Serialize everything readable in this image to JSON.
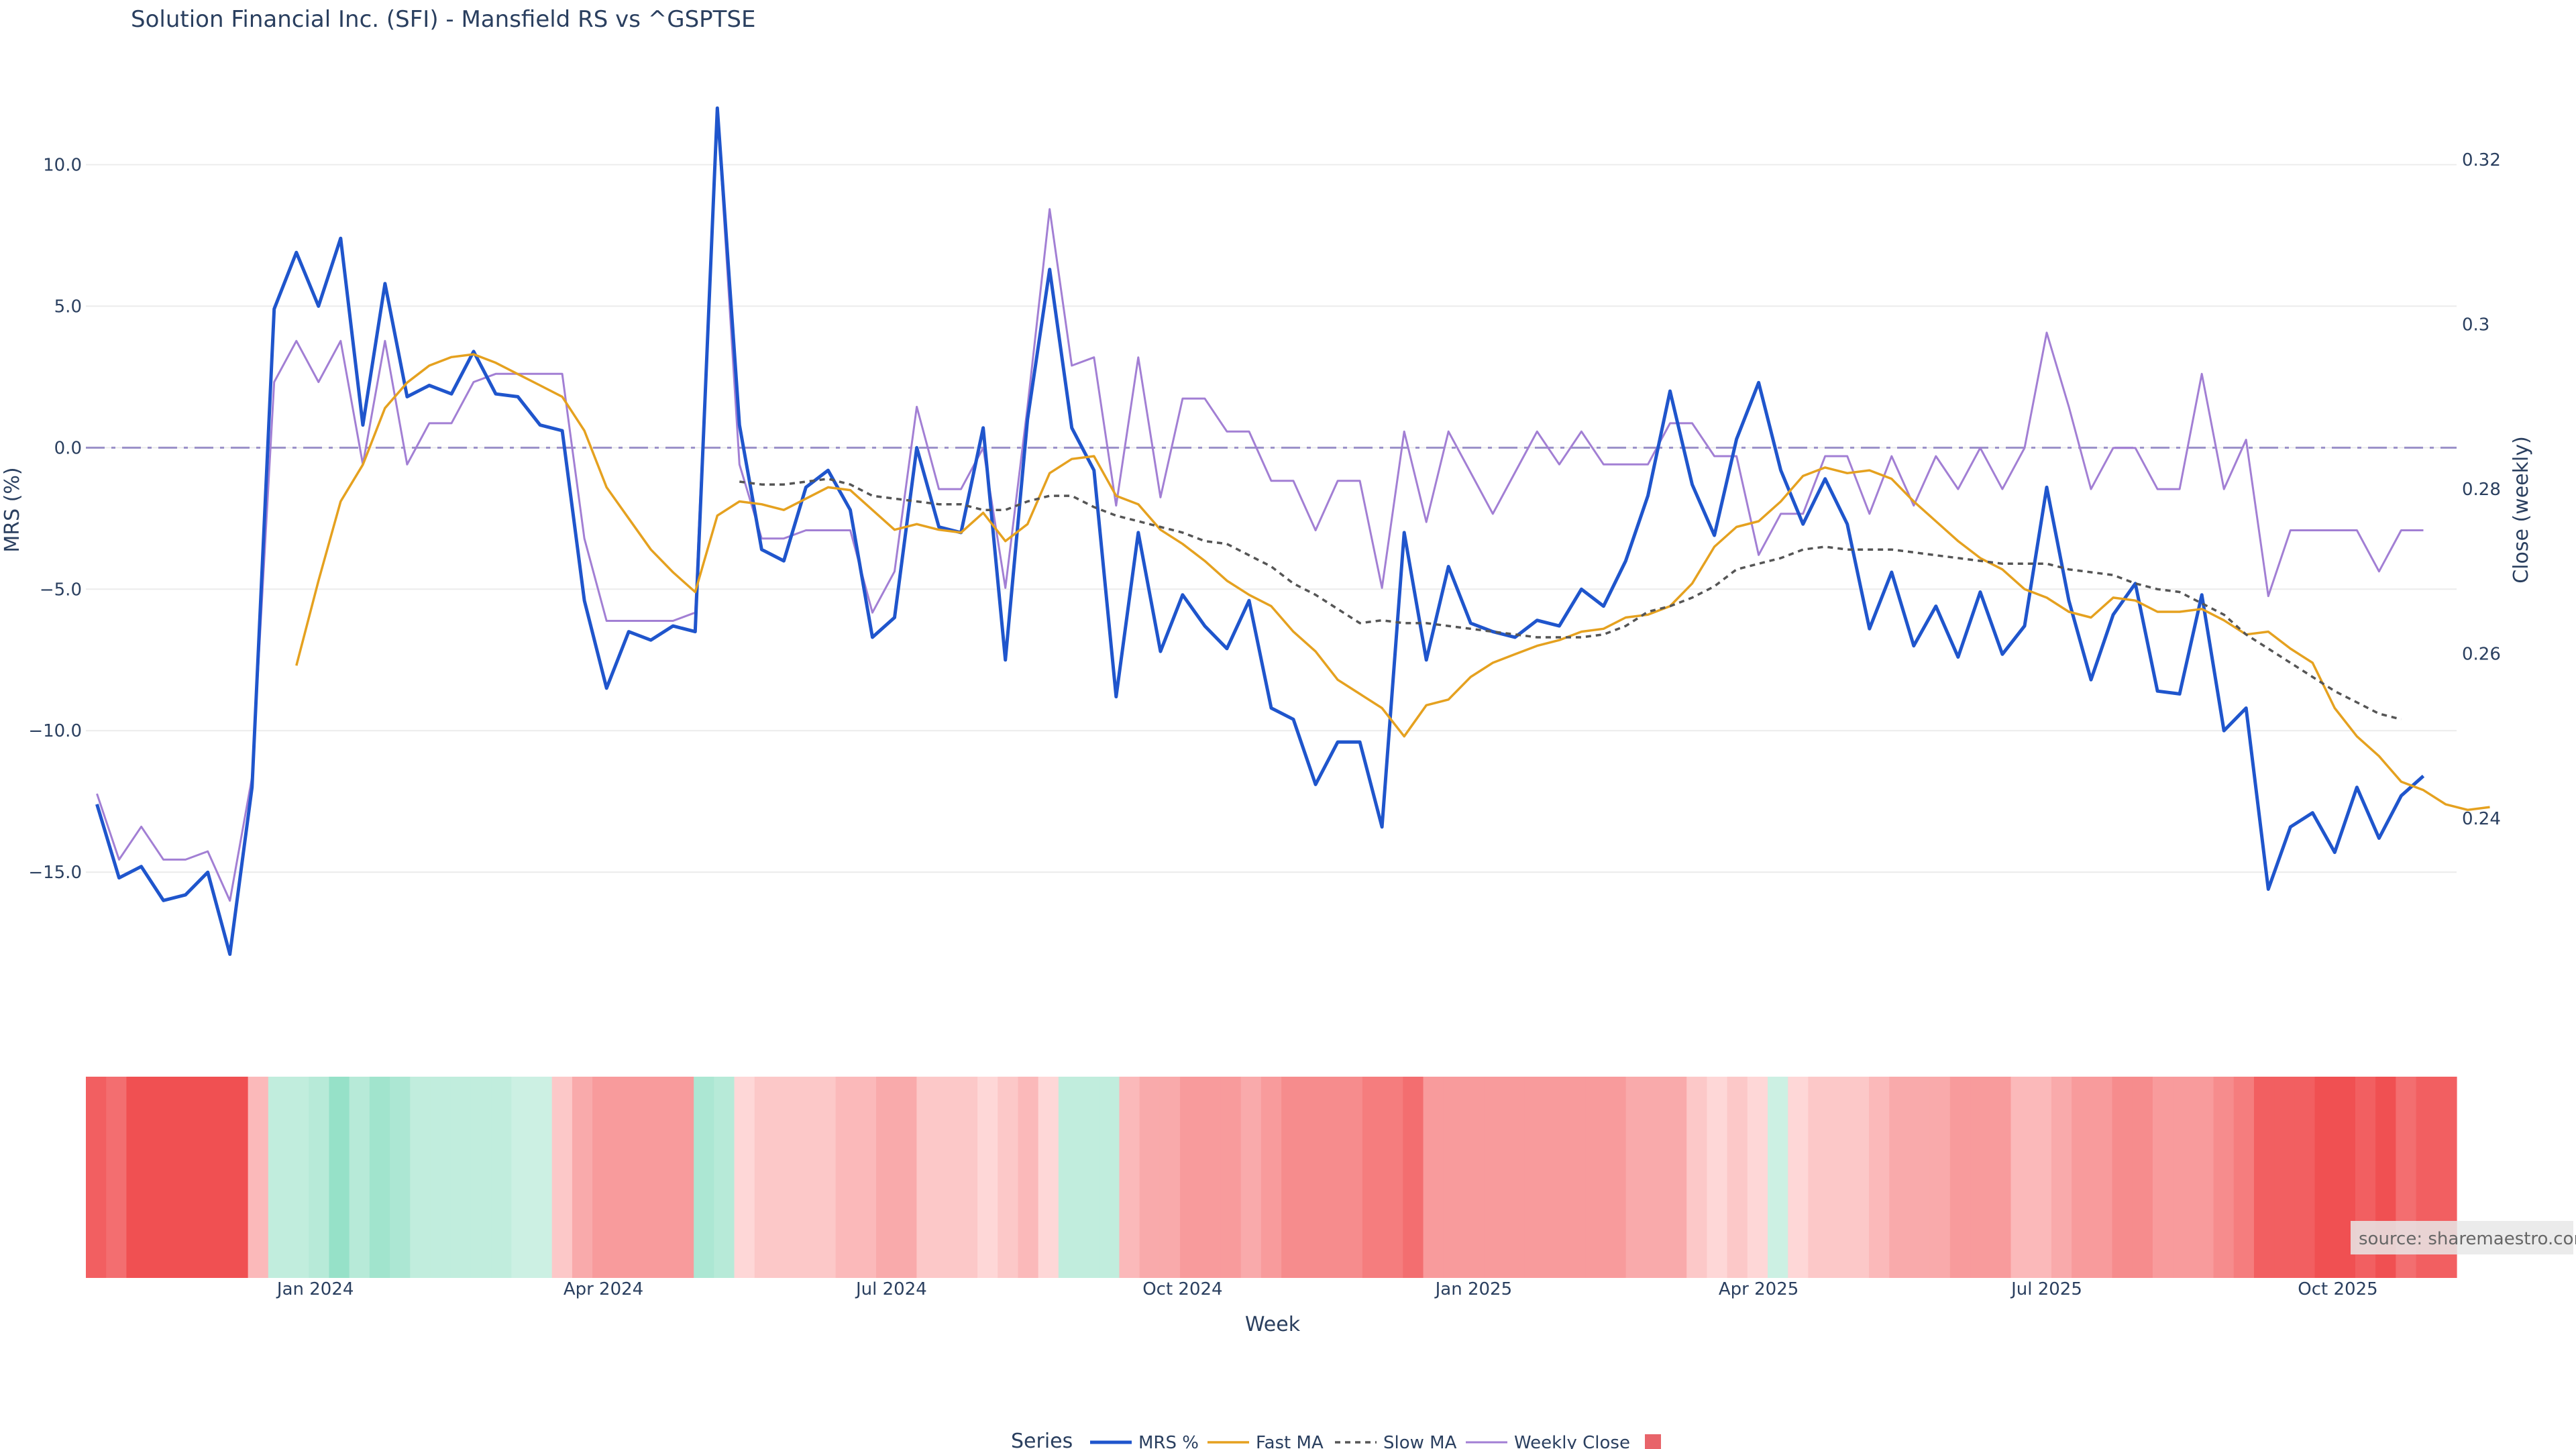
{
  "chart_data": {
    "type": "line",
    "title": "Solution Financial Inc. (SFI) - Mansfield RS vs ^GSPTSE",
    "xlabel": "Week",
    "ylabel": "MRS (%)",
    "y2label": "Close (weekly)",
    "source": "source: sharemaestro.com",
    "legend_title": "Series",
    "legend_placement": "bottom",
    "grid": true,
    "x_range": [
      0,
      107
    ],
    "ylim": [
      -19.5,
      12.5
    ],
    "y2lim": [
      0.218,
      0.328
    ],
    "y_ticks": [
      10,
      5,
      0,
      -5,
      -10,
      -15
    ],
    "y_tick_labels": [
      "10.0",
      "5.0",
      "0.0",
      "−5.0",
      "−10.0",
      "−15.0"
    ],
    "y2_ticks": [
      0.32,
      0.3,
      0.28,
      0.26,
      0.24
    ],
    "y2_tick_labels": [
      "0.32",
      "0.3",
      "0.28",
      "0.26",
      "0.24"
    ],
    "x_ticks": [
      {
        "label": "Jan 2024",
        "x": 9.86
      },
      {
        "label": "Apr 2024",
        "x": 22.86
      },
      {
        "label": "Jul 2024",
        "x": 35.86
      },
      {
        "label": "Oct 2024",
        "x": 49
      },
      {
        "label": "Jan 2025",
        "x": 62.14
      },
      {
        "label": "Apr 2025",
        "x": 75
      },
      {
        "label": "Jul 2025",
        "x": 88
      },
      {
        "label": "Oct 2025",
        "x": 101.14
      }
    ],
    "zero_line": 0,
    "series": [
      {
        "name": "MRS %",
        "color": "#1f55cc",
        "axis": "y",
        "values": [
          -12.6,
          -15.2,
          -14.8,
          -16.0,
          -15.8,
          -15.0,
          -17.9,
          -12.0,
          4.9,
          6.9,
          5.0,
          7.4,
          0.8,
          5.8,
          1.8,
          2.2,
          1.9,
          3.4,
          1.9,
          1.8,
          0.8,
          0.6,
          -5.4,
          -8.5,
          -6.5,
          -6.8,
          -6.3,
          -6.5,
          12.0,
          0.8,
          -3.6,
          -4.0,
          -1.4,
          -0.8,
          -2.2,
          -6.7,
          -6.0,
          0.0,
          -2.8,
          -3.0,
          0.7,
          -7.5,
          1.0,
          6.3,
          0.7,
          -0.8,
          -8.8,
          -3.0,
          -7.2,
          -5.2,
          -6.3,
          -7.1,
          -5.4,
          -9.2,
          -9.6,
          -11.9,
          -10.4,
          -10.4,
          -13.4,
          -3.0,
          -7.5,
          -4.2,
          -6.2,
          -6.5,
          -6.7,
          -6.1,
          -6.3,
          -5.0,
          -5.6,
          -4.0,
          -1.7,
          2.0,
          -1.3,
          -3.1,
          0.3,
          2.3,
          -0.8,
          -2.7,
          -1.1,
          -2.7,
          -6.4,
          -4.4,
          -7.0,
          -5.6,
          -7.4,
          -5.1,
          -7.3,
          -6.3,
          -1.4,
          -5.4,
          -8.2,
          -5.9,
          -4.8,
          -8.6,
          -8.7,
          -5.2,
          -10.0,
          -9.2,
          -15.6,
          -13.4,
          -12.9,
          -14.3,
          -12.0,
          -13.8,
          -12.3,
          -11.6
        ]
      },
      {
        "name": "Fast MA",
        "color": "#e5a11f",
        "axis": "y",
        "start": 9,
        "values": [
          -7.7,
          -4.7,
          -1.9,
          -0.6,
          1.4,
          2.3,
          2.9,
          3.2,
          3.3,
          3.0,
          2.6,
          2.2,
          1.8,
          0.6,
          -1.4,
          -2.5,
          -3.6,
          -4.4,
          -5.1,
          -2.4,
          -1.9,
          -2.0,
          -2.2,
          -1.8,
          -1.4,
          -1.5,
          -2.2,
          -2.9,
          -2.7,
          -2.9,
          -3.0,
          -2.3,
          -3.3,
          -2.7,
          -0.9,
          -0.4,
          -0.3,
          -1.7,
          -2.0,
          -2.9,
          -3.4,
          -4.0,
          -4.7,
          -5.2,
          -5.6,
          -6.5,
          -7.2,
          -8.2,
          -8.7,
          -9.2,
          -10.2,
          -9.1,
          -8.9,
          -8.1,
          -7.6,
          -7.3,
          -7.0,
          -6.8,
          -6.5,
          -6.4,
          -6.0,
          -5.9,
          -5.6,
          -4.8,
          -3.5,
          -2.8,
          -2.6,
          -1.9,
          -1.0,
          -0.7,
          -0.9,
          -0.8,
          -1.1,
          -1.9,
          -2.6,
          -3.3,
          -3.9,
          -4.3,
          -5.0,
          -5.3,
          -5.8,
          -6.0,
          -5.3,
          -5.4,
          -5.8,
          -5.8,
          -5.7,
          -6.1,
          -6.6,
          -6.5,
          -7.1,
          -7.6,
          -9.2,
          -10.2,
          -10.9,
          -11.8,
          -12.1,
          -12.6,
          -12.8,
          -12.7
        ]
      },
      {
        "name": "Slow MA",
        "color": "#555555",
        "axis": "y",
        "dash": true,
        "start": 29,
        "values": [
          -1.2,
          -1.3,
          -1.3,
          -1.2,
          -1.1,
          -1.3,
          -1.7,
          -1.8,
          -1.9,
          -2.0,
          -2.0,
          -2.2,
          -2.2,
          -1.9,
          -1.7,
          -1.7,
          -2.1,
          -2.4,
          -2.6,
          -2.8,
          -3.0,
          -3.3,
          -3.4,
          -3.8,
          -4.2,
          -4.8,
          -5.2,
          -5.7,
          -6.2,
          -6.1,
          -6.2,
          -6.2,
          -6.3,
          -6.4,
          -6.5,
          -6.6,
          -6.7,
          -6.7,
          -6.7,
          -6.6,
          -6.3,
          -5.8,
          -5.6,
          -5.3,
          -4.9,
          -4.3,
          -4.1,
          -3.9,
          -3.6,
          -3.5,
          -3.6,
          -3.6,
          -3.6,
          -3.7,
          -3.8,
          -3.9,
          -4.0,
          -4.1,
          -4.1,
          -4.1,
          -4.3,
          -4.4,
          -4.5,
          -4.8,
          -5.0,
          -5.1,
          -5.5,
          -5.9,
          -6.6,
          -7.1,
          -7.6,
          -8.1,
          -8.6,
          -9.0,
          -9.4,
          -9.6
        ]
      },
      {
        "name": "Weekly Close",
        "color": "#a27fd4",
        "axis": "y2",
        "values": [
          0.243,
          0.235,
          0.239,
          0.235,
          0.235,
          0.236,
          0.23,
          0.245,
          0.293,
          0.298,
          0.293,
          0.298,
          0.283,
          0.298,
          0.283,
          0.288,
          0.288,
          0.293,
          0.294,
          0.294,
          0.294,
          0.294,
          0.274,
          0.264,
          0.264,
          0.264,
          0.264,
          0.265,
          0.326,
          0.283,
          0.274,
          0.274,
          0.275,
          0.275,
          0.275,
          0.265,
          0.27,
          0.29,
          0.28,
          0.28,
          0.285,
          0.268,
          0.29,
          0.314,
          0.295,
          0.296,
          0.278,
          0.296,
          0.279,
          0.291,
          0.291,
          0.287,
          0.287,
          0.281,
          0.281,
          0.275,
          0.281,
          0.281,
          0.268,
          0.287,
          0.276,
          0.287,
          0.282,
          0.277,
          0.282,
          0.287,
          0.283,
          0.287,
          0.283,
          0.283,
          0.283,
          0.288,
          0.288,
          0.284,
          0.284,
          0.272,
          0.277,
          0.277,
          0.284,
          0.284,
          0.277,
          0.284,
          0.278,
          0.284,
          0.28,
          0.285,
          0.28,
          0.285,
          0.299,
          0.29,
          0.28,
          0.285,
          0.285,
          0.28,
          0.28,
          0.294,
          0.28,
          0.286,
          0.267,
          0.275,
          0.275,
          0.275,
          0.275,
          0.27,
          0.275,
          0.275
        ]
      }
    ],
    "heatmap": {
      "description_values": "weekly MRS-based strength band, negative = red, positive = green",
      "values": [
        -9,
        -8,
        -10,
        -10,
        -10,
        -10,
        -10,
        -10,
        -3,
        2,
        2,
        3,
        6,
        3,
        5,
        4,
        2,
        2,
        2,
        2,
        2,
        1,
        1,
        -2,
        -4,
        -5,
        -5,
        -5,
        -5,
        -5,
        4,
        3,
        -1,
        -2,
        -2,
        -2,
        -2,
        -3,
        -3,
        -4,
        -4,
        -2,
        -2,
        -2,
        -1,
        -2,
        -3,
        -1,
        2,
        2,
        2,
        -3,
        -4,
        -4,
        -5,
        -5,
        -5,
        -4,
        -5,
        -6,
        -6,
        -6,
        -6,
        -7,
        -7,
        -8,
        -5,
        -5,
        -5,
        -5,
        -5,
        -5,
        -5,
        -5,
        -5,
        -5,
        -4,
        -4,
        -4,
        -2,
        -1,
        -2,
        -1,
        1,
        -1,
        -2,
        -2,
        -2,
        -3,
        -4,
        -4,
        -4,
        -5,
        -5,
        -5,
        -3,
        -3,
        -4,
        -5,
        -5,
        -6,
        -6,
        -5,
        -5,
        -5,
        -6,
        -7,
        -9,
        -9,
        -9,
        -10,
        -10,
        -9,
        -10,
        -8,
        -9,
        -9
      ]
    }
  }
}
